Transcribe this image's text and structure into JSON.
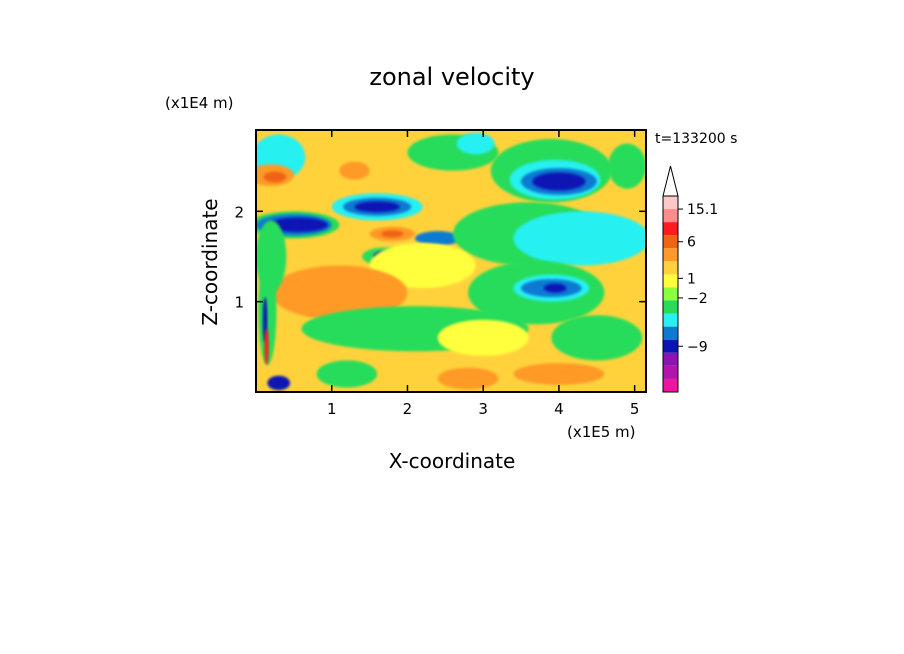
{
  "chart_data": {
    "type": "heatmap",
    "title": "zonal velocity",
    "xlabel": "X-coordinate",
    "ylabel": "Z-coordinate",
    "x_unit": "(x1E5 m)",
    "y_unit": "(x1E4 m)",
    "time_label": "t=133200 s",
    "xlim": [
      0,
      5.15
    ],
    "ylim": [
      0,
      2.9
    ],
    "xticks": [
      {
        "value": 1,
        "label": "1"
      },
      {
        "value": 2,
        "label": "2"
      },
      {
        "value": 3,
        "label": "3"
      },
      {
        "value": 4,
        "label": "4"
      },
      {
        "value": 5,
        "label": "5"
      }
    ],
    "yticks": [
      {
        "value": 1,
        "label": "1"
      },
      {
        "value": 2,
        "label": "2"
      }
    ],
    "colorbar": {
      "colors": [
        "#ffc8c8",
        "#ff8c8c",
        "#ff1c1c",
        "#f06414",
        "#ff9a28",
        "#ffd23c",
        "#ffff3c",
        "#8cff3c",
        "#28dc5a",
        "#28f0f0",
        "#0a7ad2",
        "#0a14b4",
        "#8c14b4",
        "#b414aa",
        "#f014a0"
      ],
      "labels": [
        {
          "text": "15.1",
          "level": 1
        },
        {
          "text": "6",
          "level": 3.5
        },
        {
          "text": "1",
          "level": 6.3
        },
        {
          "text": "−2",
          "level": 7.8
        },
        {
          "text": "−9",
          "level": 11.5
        }
      ]
    },
    "field": {
      "background": "#ffd23c",
      "blobs": [
        {
          "x": 2.6,
          "z": 2.65,
          "rx": 0.6,
          "rz": 0.2,
          "color": "#28dc5a"
        },
        {
          "x": 2.9,
          "z": 2.75,
          "rx": 0.25,
          "rz": 0.12,
          "color": "#28f0f0"
        },
        {
          "x": 3.9,
          "z": 2.45,
          "rx": 0.8,
          "rz": 0.35,
          "color": "#28dc5a"
        },
        {
          "x": 3.95,
          "z": 2.35,
          "rx": 0.6,
          "rz": 0.22,
          "color": "#28f0f0"
        },
        {
          "x": 4.0,
          "z": 2.33,
          "rx": 0.5,
          "rz": 0.15,
          "color": "#0a7ad2"
        },
        {
          "x": 4.0,
          "z": 2.33,
          "rx": 0.35,
          "rz": 0.1,
          "color": "#0a14b4"
        },
        {
          "x": 0.3,
          "z": 2.6,
          "rx": 0.35,
          "rz": 0.25,
          "color": "#28f0f0"
        },
        {
          "x": 4.9,
          "z": 2.5,
          "rx": 0.25,
          "rz": 0.25,
          "color": "#28dc5a"
        },
        {
          "x": 0.2,
          "z": 2.4,
          "rx": 0.3,
          "rz": 0.12,
          "color": "#ff9a28"
        },
        {
          "x": 0.25,
          "z": 2.38,
          "rx": 0.15,
          "rz": 0.06,
          "color": "#f06414"
        },
        {
          "x": 1.3,
          "z": 2.45,
          "rx": 0.2,
          "rz": 0.1,
          "color": "#ff9a28"
        },
        {
          "x": 0.5,
          "z": 1.85,
          "rx": 0.6,
          "rz": 0.15,
          "color": "#28dc5a"
        },
        {
          "x": 0.5,
          "z": 1.85,
          "rx": 0.5,
          "rz": 0.12,
          "color": "#0a7ad2"
        },
        {
          "x": 0.55,
          "z": 1.85,
          "rx": 0.4,
          "rz": 0.08,
          "color": "#0a14b4"
        },
        {
          "x": 1.6,
          "z": 2.05,
          "rx": 0.6,
          "rz": 0.15,
          "color": "#28f0f0"
        },
        {
          "x": 1.6,
          "z": 2.05,
          "rx": 0.45,
          "rz": 0.1,
          "color": "#0a7ad2"
        },
        {
          "x": 1.6,
          "z": 2.05,
          "rx": 0.3,
          "rz": 0.06,
          "color": "#0a14b4"
        },
        {
          "x": 2.4,
          "z": 1.7,
          "rx": 0.3,
          "rz": 0.08,
          "color": "#0a7ad2"
        },
        {
          "x": 1.8,
          "z": 1.75,
          "rx": 0.3,
          "rz": 0.08,
          "color": "#ff9a28"
        },
        {
          "x": 1.8,
          "z": 1.75,
          "rx": 0.15,
          "rz": 0.04,
          "color": "#f06414"
        },
        {
          "x": 1.7,
          "z": 1.5,
          "rx": 0.3,
          "rz": 0.1,
          "color": "#28dc5a"
        },
        {
          "x": 1.7,
          "z": 1.5,
          "rx": 0.15,
          "rz": 0.06,
          "color": "#0a14b4"
        },
        {
          "x": 3.6,
          "z": 1.75,
          "rx": 1.0,
          "rz": 0.35,
          "color": "#28dc5a"
        },
        {
          "x": 4.3,
          "z": 1.7,
          "rx": 0.9,
          "rz": 0.3,
          "color": "#28f0f0"
        },
        {
          "x": 3.7,
          "z": 1.1,
          "rx": 0.9,
          "rz": 0.35,
          "color": "#28dc5a"
        },
        {
          "x": 3.9,
          "z": 1.15,
          "rx": 0.5,
          "rz": 0.15,
          "color": "#28f0f0"
        },
        {
          "x": 3.9,
          "z": 1.15,
          "rx": 0.4,
          "rz": 0.1,
          "color": "#0a7ad2"
        },
        {
          "x": 3.95,
          "z": 1.15,
          "rx": 0.15,
          "rz": 0.05,
          "color": "#0a14b4"
        },
        {
          "x": 2.2,
          "z": 1.4,
          "rx": 0.7,
          "rz": 0.25,
          "color": "#ffff3c"
        },
        {
          "x": 1.1,
          "z": 1.1,
          "rx": 0.9,
          "rz": 0.3,
          "color": "#ff9a28"
        },
        {
          "x": 0.2,
          "z": 1.5,
          "rx": 0.2,
          "rz": 0.4,
          "color": "#28dc5a"
        },
        {
          "x": 0.15,
          "z": 0.9,
          "rx": 0.12,
          "rz": 0.6,
          "color": "#28dc5a"
        },
        {
          "x": 2.1,
          "z": 0.7,
          "rx": 1.5,
          "rz": 0.25,
          "color": "#28dc5a"
        },
        {
          "x": 3.0,
          "z": 0.6,
          "rx": 0.6,
          "rz": 0.2,
          "color": "#ffff3c"
        },
        {
          "x": 4.5,
          "z": 0.6,
          "rx": 0.6,
          "rz": 0.25,
          "color": "#28dc5a"
        },
        {
          "x": 1.2,
          "z": 0.2,
          "rx": 0.4,
          "rz": 0.15,
          "color": "#28dc5a"
        },
        {
          "x": 2.8,
          "z": 0.15,
          "rx": 0.4,
          "rz": 0.12,
          "color": "#ff9a28"
        },
        {
          "x": 4.0,
          "z": 0.2,
          "rx": 0.6,
          "rz": 0.12,
          "color": "#ff9a28"
        },
        {
          "x": 0.3,
          "z": 0.1,
          "rx": 0.15,
          "rz": 0.08,
          "color": "#0a14b4"
        },
        {
          "x": 0.12,
          "z": 0.8,
          "rx": 0.03,
          "rz": 0.25,
          "color": "#0a14b4"
        },
        {
          "x": 0.14,
          "z": 0.5,
          "rx": 0.03,
          "rz": 0.2,
          "color": "#ff1c1c"
        }
      ]
    }
  }
}
